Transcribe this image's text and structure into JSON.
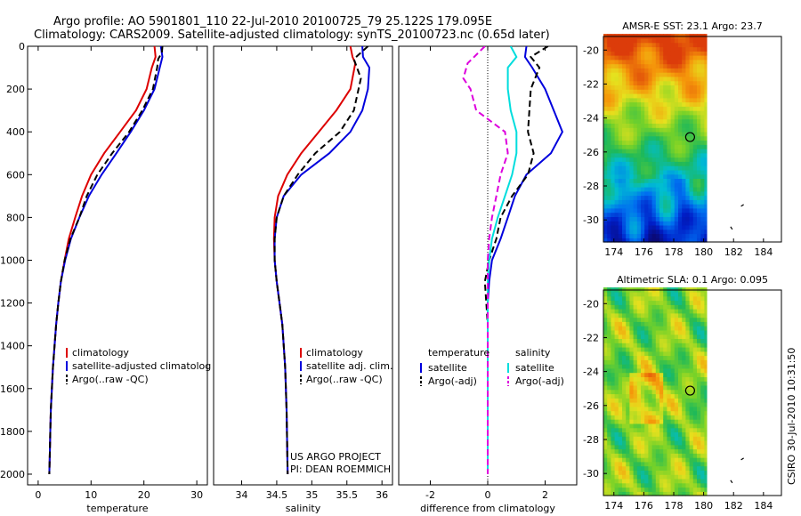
{
  "header": {
    "line1": "Argo profile: AO 5901801_110 22-Jul-2010 20100725_79 25.122S 179.095E",
    "line2": "Climatology: CARS2009. Satellite-adjusted climatology: synTS_20100723.nc (0.65d later)"
  },
  "side_label": "CSIRO 30-Jul-2010 10:31:50",
  "credit": {
    "line1": "US ARGO PROJECT",
    "line2": "PI: DEAN ROEMMICH"
  },
  "colors": {
    "climatology": "#dd0000",
    "satellite": "#0000dd",
    "argo": "#000000",
    "sat_salinity": "#00dddd",
    "argo_salinity": "#dd00dd"
  },
  "chart_data": [
    {
      "type": "line",
      "id": "temperature",
      "xlabel": "temperature",
      "ylabel": "",
      "xlim": [
        -2,
        32
      ],
      "ylim": [
        2050,
        0
      ],
      "xticks": [
        0,
        10,
        20,
        30
      ],
      "yticks": [
        0,
        200,
        400,
        600,
        800,
        1000,
        1200,
        1400,
        1600,
        1800,
        2000
      ],
      "legend": [
        "climatology",
        "satellite-adjusted climatolog",
        "Argo(..raw -QC)"
      ],
      "legend_position": "lower-right",
      "series": [
        {
          "name": "climatology",
          "style": "solid",
          "color": "#dd0000",
          "points": [
            [
              22.0,
              0
            ],
            [
              22.2,
              50
            ],
            [
              21.5,
              100
            ],
            [
              20.5,
              200
            ],
            [
              18.5,
              300
            ],
            [
              15.5,
              400
            ],
            [
              12.5,
              500
            ],
            [
              10.0,
              600
            ],
            [
              8.3,
              700
            ],
            [
              7.0,
              800
            ],
            [
              5.8,
              900
            ],
            [
              5.0,
              1000
            ],
            [
              4.3,
              1100
            ],
            [
              3.8,
              1200
            ],
            [
              3.4,
              1300
            ],
            [
              3.1,
              1400
            ],
            [
              2.8,
              1500
            ],
            [
              2.6,
              1600
            ],
            [
              2.4,
              1700
            ],
            [
              2.3,
              1800
            ],
            [
              2.2,
              1900
            ],
            [
              2.1,
              2000
            ]
          ]
        },
        {
          "name": "satellite-adjusted climatolog",
          "style": "solid",
          "color": "#0000dd",
          "points": [
            [
              23.2,
              0
            ],
            [
              23.5,
              50
            ],
            [
              23.0,
              100
            ],
            [
              22.0,
              200
            ],
            [
              20.0,
              300
            ],
            [
              17.5,
              400
            ],
            [
              14.8,
              500
            ],
            [
              12.0,
              600
            ],
            [
              9.6,
              700
            ],
            [
              7.8,
              800
            ],
            [
              6.2,
              900
            ],
            [
              5.1,
              1000
            ],
            [
              4.3,
              1100
            ],
            [
              3.8,
              1200
            ],
            [
              3.4,
              1300
            ],
            [
              3.1,
              1400
            ],
            [
              2.8,
              1500
            ],
            [
              2.6,
              1600
            ],
            [
              2.4,
              1700
            ],
            [
              2.3,
              1800
            ],
            [
              2.2,
              1900
            ],
            [
              2.1,
              2000
            ]
          ]
        },
        {
          "name": "Argo(..raw -QC)",
          "style": "dashed",
          "color": "#000000",
          "points": [
            [
              23.5,
              0
            ],
            [
              23.4,
              30
            ],
            [
              22.7,
              60
            ],
            [
              22.5,
              100
            ],
            [
              21.7,
              200
            ],
            [
              19.7,
              300
            ],
            [
              17.2,
              400
            ],
            [
              14.0,
              500
            ],
            [
              11.2,
              600
            ],
            [
              9.2,
              700
            ],
            [
              7.8,
              800
            ],
            [
              6.1,
              900
            ],
            [
              5.0,
              1000
            ],
            [
              4.3,
              1100
            ],
            [
              3.8,
              1200
            ],
            [
              3.4,
              1300
            ],
            [
              3.1,
              1400
            ],
            [
              2.8,
              1500
            ],
            [
              2.6,
              1600
            ],
            [
              2.4,
              1700
            ],
            [
              2.3,
              1800
            ],
            [
              2.2,
              1900
            ],
            [
              2.1,
              2000
            ]
          ]
        }
      ]
    },
    {
      "type": "line",
      "id": "salinity",
      "xlabel": "salinity",
      "ylabel": "",
      "xlim": [
        33.6,
        36.15
      ],
      "ylim": [
        2050,
        0
      ],
      "xticks": [
        34,
        34.5,
        35,
        35.5,
        36
      ],
      "yticks": [],
      "legend": [
        "climatology",
        "satellite adj. clim.",
        "Argo(..raw -QC)"
      ],
      "legend_position": "lower-right",
      "series": [
        {
          "name": "climatology",
          "style": "solid",
          "color": "#dd0000",
          "points": [
            [
              35.55,
              0
            ],
            [
              35.58,
              50
            ],
            [
              35.62,
              80
            ],
            [
              35.55,
              200
            ],
            [
              35.35,
              300
            ],
            [
              35.1,
              400
            ],
            [
              34.85,
              500
            ],
            [
              34.65,
              600
            ],
            [
              34.52,
              700
            ],
            [
              34.47,
              800
            ],
            [
              34.46,
              900
            ],
            [
              34.47,
              1000
            ],
            [
              34.5,
              1100
            ],
            [
              34.54,
              1200
            ],
            [
              34.58,
              1300
            ],
            [
              34.6,
              1400
            ],
            [
              34.62,
              1500
            ],
            [
              34.63,
              1600
            ],
            [
              34.64,
              1700
            ],
            [
              34.645,
              1800
            ],
            [
              34.65,
              1900
            ],
            [
              34.655,
              2000
            ]
          ]
        },
        {
          "name": "satellite adj. clim.",
          "style": "solid",
          "color": "#0000dd",
          "points": [
            [
              35.72,
              0
            ],
            [
              35.73,
              50
            ],
            [
              35.82,
              100
            ],
            [
              35.8,
              200
            ],
            [
              35.72,
              300
            ],
            [
              35.55,
              400
            ],
            [
              35.25,
              500
            ],
            [
              34.85,
              600
            ],
            [
              34.6,
              700
            ],
            [
              34.5,
              800
            ],
            [
              34.47,
              900
            ],
            [
              34.47,
              1000
            ],
            [
              34.5,
              1100
            ],
            [
              34.54,
              1200
            ],
            [
              34.58,
              1300
            ],
            [
              34.6,
              1400
            ],
            [
              34.62,
              1500
            ],
            [
              34.63,
              1600
            ],
            [
              34.64,
              1700
            ],
            [
              34.645,
              1800
            ],
            [
              34.65,
              1900
            ],
            [
              34.655,
              2000
            ]
          ]
        },
        {
          "name": "Argo(..raw -QC)",
          "style": "dashed",
          "color": "#000000",
          "points": [
            [
              35.8,
              0
            ],
            [
              35.6,
              60
            ],
            [
              35.7,
              150
            ],
            [
              35.6,
              300
            ],
            [
              35.4,
              400
            ],
            [
              35.05,
              500
            ],
            [
              34.8,
              600
            ],
            [
              34.6,
              700
            ],
            [
              34.5,
              800
            ],
            [
              34.47,
              900
            ],
            [
              34.47,
              1000
            ],
            [
              34.5,
              1100
            ],
            [
              34.54,
              1200
            ],
            [
              34.58,
              1300
            ],
            [
              34.6,
              1400
            ],
            [
              34.62,
              1500
            ],
            [
              34.63,
              1600
            ],
            [
              34.64,
              1700
            ],
            [
              34.645,
              1800
            ],
            [
              34.65,
              1900
            ],
            [
              34.655,
              2000
            ]
          ]
        }
      ]
    },
    {
      "type": "line",
      "id": "difference",
      "xlabel": "difference from climatology",
      "ylabel": "",
      "xlim": [
        -3.1,
        3.1
      ],
      "ylim": [
        2050,
        0
      ],
      "xticks": [
        -2,
        0,
        2
      ],
      "yticks": [],
      "legend_groups": [
        {
          "title": "temperature",
          "items": [
            "satellite",
            "Argo(-adj)"
          ]
        },
        {
          "title": "salinity",
          "items": [
            "satellite",
            "Argo(-adj)"
          ]
        }
      ],
      "legend_position": "lower",
      "series": [
        {
          "name": "temperature satellite",
          "style": "solid",
          "color": "#0000dd",
          "points": [
            [
              1.35,
              0
            ],
            [
              1.3,
              50
            ],
            [
              1.55,
              100
            ],
            [
              2.0,
              200
            ],
            [
              2.3,
              300
            ],
            [
              2.6,
              400
            ],
            [
              2.2,
              500
            ],
            [
              1.35,
              600
            ],
            [
              0.95,
              700
            ],
            [
              0.7,
              800
            ],
            [
              0.45,
              900
            ],
            [
              0.15,
              1000
            ],
            [
              0.05,
              1100
            ],
            [
              0,
              1200
            ],
            [
              0,
              1400
            ],
            [
              0,
              1600
            ],
            [
              0,
              1800
            ],
            [
              0,
              2000
            ]
          ]
        },
        {
          "name": "temperature Argo(-adj)",
          "style": "dashed",
          "color": "#000000",
          "points": [
            [
              2.1,
              0
            ],
            [
              1.5,
              50
            ],
            [
              1.8,
              100
            ],
            [
              1.5,
              200
            ],
            [
              1.45,
              300
            ],
            [
              1.4,
              400
            ],
            [
              1.6,
              500
            ],
            [
              1.4,
              600
            ],
            [
              0.85,
              700
            ],
            [
              0.45,
              800
            ],
            [
              0.3,
              900
            ],
            [
              0.05,
              1000
            ],
            [
              -0.1,
              1100
            ],
            [
              -0.05,
              1200
            ],
            [
              0,
              1300
            ],
            [
              0,
              1400
            ],
            [
              0,
              1600
            ],
            [
              0,
              1800
            ],
            [
              0,
              2000
            ]
          ]
        },
        {
          "name": "salinity satellite",
          "style": "solid",
          "color": "#00dddd",
          "points": [
            [
              0.8,
              0
            ],
            [
              1.0,
              50
            ],
            [
              0.7,
              100
            ],
            [
              0.7,
              200
            ],
            [
              0.8,
              300
            ],
            [
              1.0,
              400
            ],
            [
              1.0,
              500
            ],
            [
              0.85,
              600
            ],
            [
              0.6,
              700
            ],
            [
              0.35,
              800
            ],
            [
              0.15,
              900
            ],
            [
              0.05,
              1000
            ],
            [
              0,
              1100
            ],
            [
              0,
              1200
            ],
            [
              0,
              1400
            ],
            [
              0,
              1600
            ],
            [
              0,
              1800
            ],
            [
              0,
              2000
            ]
          ]
        },
        {
          "name": "salinity Argo(-adj)",
          "style": "dashed",
          "color": "#dd00dd",
          "points": [
            [
              -0.1,
              0
            ],
            [
              -0.7,
              80
            ],
            [
              -0.85,
              150
            ],
            [
              -0.6,
              200
            ],
            [
              -0.4,
              300
            ],
            [
              0.6,
              400
            ],
            [
              0.7,
              500
            ],
            [
              0.45,
              600
            ],
            [
              0.3,
              700
            ],
            [
              0.15,
              800
            ],
            [
              0.05,
              900
            ],
            [
              0,
              1000
            ],
            [
              0,
              1200
            ],
            [
              0,
              1400
            ],
            [
              0,
              1600
            ],
            [
              0,
              1800
            ],
            [
              0,
              2000
            ]
          ]
        }
      ]
    },
    {
      "type": "heatmap",
      "id": "sst_map",
      "title": "AMSR-E SST: 23.1  Argo: 23.7",
      "xlim": [
        173.3,
        185.2
      ],
      "ylim": [
        -31.3,
        -19.2
      ],
      "xticks": [
        174,
        176,
        178,
        180,
        182,
        184
      ],
      "yticks": [
        -20,
        -22,
        -24,
        -26,
        -28,
        -30
      ],
      "data_lon_max": 180.2,
      "marker": {
        "lon": 179.095,
        "lat": -25.122
      }
    },
    {
      "type": "heatmap",
      "id": "sla_map",
      "title": "Altimetric SLA: 0.1  Argo: 0.095",
      "xlim": [
        173.3,
        185.2
      ],
      "ylim": [
        -31.3,
        -19.2
      ],
      "xticks": [
        174,
        176,
        178,
        180,
        182,
        184
      ],
      "yticks": [
        -20,
        -22,
        -24,
        -26,
        -28,
        -30
      ],
      "data_lon_max": 180.2,
      "marker": {
        "lon": 179.095,
        "lat": -25.122
      }
    }
  ]
}
